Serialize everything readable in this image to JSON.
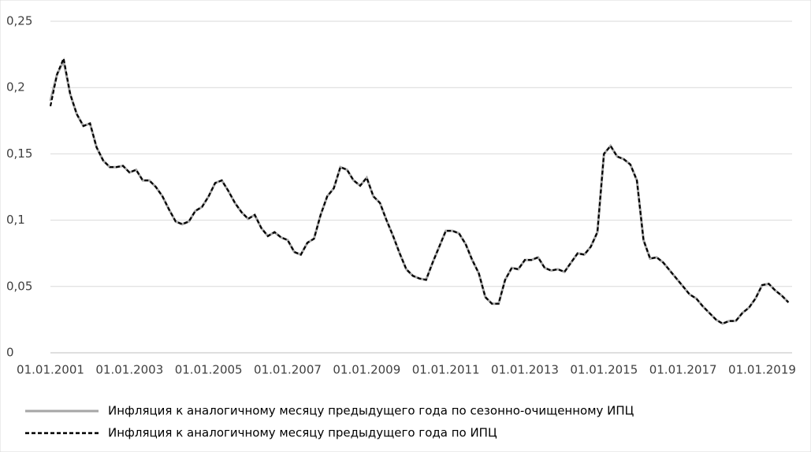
{
  "chart_data": {
    "type": "line",
    "x": [
      "01.01.2001",
      "01.03.2001",
      "01.05.2001",
      "01.07.2001",
      "01.09.2001",
      "01.11.2001",
      "01.01.2002",
      "01.03.2002",
      "01.05.2002",
      "01.07.2002",
      "01.09.2002",
      "01.11.2002",
      "01.01.2003",
      "01.03.2003",
      "01.05.2003",
      "01.07.2003",
      "01.09.2003",
      "01.11.2003",
      "01.01.2004",
      "01.03.2004",
      "01.05.2004",
      "01.07.2004",
      "01.09.2004",
      "01.11.2004",
      "01.01.2005",
      "01.03.2005",
      "01.05.2005",
      "01.07.2005",
      "01.09.2005",
      "01.11.2005",
      "01.01.2006",
      "01.03.2006",
      "01.05.2006",
      "01.07.2006",
      "01.09.2006",
      "01.11.2006",
      "01.01.2007",
      "01.03.2007",
      "01.05.2007",
      "01.07.2007",
      "01.09.2007",
      "01.11.2007",
      "01.01.2008",
      "01.03.2008",
      "01.05.2008",
      "01.07.2008",
      "01.09.2008",
      "01.11.2008",
      "01.01.2009",
      "01.03.2009",
      "01.05.2009",
      "01.07.2009",
      "01.09.2009",
      "01.11.2009",
      "01.01.2010",
      "01.03.2010",
      "01.05.2010",
      "01.07.2010",
      "01.09.2010",
      "01.11.2010",
      "01.01.2011",
      "01.03.2011",
      "01.05.2011",
      "01.07.2011",
      "01.09.2011",
      "01.11.2011",
      "01.01.2012",
      "01.03.2012",
      "01.05.2012",
      "01.07.2012",
      "01.09.2012",
      "01.11.2012",
      "01.01.2013",
      "01.03.2013",
      "01.05.2013",
      "01.07.2013",
      "01.09.2013",
      "01.11.2013",
      "01.01.2014",
      "01.03.2014",
      "01.05.2014",
      "01.07.2014",
      "01.09.2014",
      "01.11.2014",
      "01.01.2015",
      "01.03.2015",
      "01.05.2015",
      "01.07.2015",
      "01.09.2015",
      "01.11.2015",
      "01.01.2016",
      "01.03.2016",
      "01.05.2016",
      "01.07.2016",
      "01.09.2016",
      "01.11.2016",
      "01.01.2017",
      "01.03.2017",
      "01.05.2017",
      "01.07.2017",
      "01.09.2017",
      "01.11.2017",
      "01.01.2018",
      "01.03.2018",
      "01.05.2018",
      "01.07.2018",
      "01.09.2018",
      "01.11.2018",
      "01.01.2019",
      "01.03.2019",
      "01.05.2019",
      "01.07.2019",
      "01.09.2019"
    ],
    "series": [
      {
        "name": "Инфляция к аналогичному месяцу предыдущего года по сезонно-очищенному ИПЦ",
        "color": "#a6a6a6",
        "dash": false,
        "values": [
          0.19,
          0.21,
          0.22,
          0.195,
          0.18,
          0.171,
          0.173,
          0.155,
          0.145,
          0.14,
          0.14,
          0.141,
          0.136,
          0.138,
          0.13,
          0.13,
          0.125,
          0.118,
          0.108,
          0.099,
          0.097,
          0.099,
          0.107,
          0.11,
          0.118,
          0.128,
          0.13,
          0.122,
          0.113,
          0.106,
          0.101,
          0.104,
          0.094,
          0.088,
          0.091,
          0.087,
          0.085,
          0.076,
          0.074,
          0.083,
          0.086,
          0.104,
          0.118,
          0.124,
          0.14,
          0.138,
          0.13,
          0.126,
          0.132,
          0.118,
          0.113,
          0.1,
          0.088,
          0.075,
          0.063,
          0.058,
          0.056,
          0.055,
          0.068,
          0.08,
          0.092,
          0.092,
          0.09,
          0.082,
          0.07,
          0.06,
          0.042,
          0.037,
          0.037,
          0.055,
          0.064,
          0.063,
          0.07,
          0.07,
          0.072,
          0.064,
          0.062,
          0.063,
          0.061,
          0.068,
          0.075,
          0.074,
          0.08,
          0.091,
          0.15,
          0.156,
          0.148,
          0.146,
          0.142,
          0.13,
          0.085,
          0.071,
          0.072,
          0.068,
          0.062,
          0.056,
          0.05,
          0.044,
          0.041,
          0.035,
          0.03,
          0.025,
          0.022,
          0.024,
          0.024,
          0.03,
          0.034,
          0.041,
          0.051,
          0.052,
          0.047,
          0.043,
          0.038
        ]
      },
      {
        "name": "Инфляция к аналогичному месяцу предыдущего года по ИПЦ",
        "color": "#000000",
        "dash": true,
        "values": [
          0.186,
          0.21,
          0.222,
          0.195,
          0.18,
          0.171,
          0.173,
          0.155,
          0.145,
          0.14,
          0.14,
          0.141,
          0.136,
          0.138,
          0.13,
          0.13,
          0.125,
          0.118,
          0.108,
          0.099,
          0.097,
          0.099,
          0.107,
          0.11,
          0.118,
          0.128,
          0.13,
          0.122,
          0.113,
          0.106,
          0.101,
          0.104,
          0.094,
          0.088,
          0.091,
          0.087,
          0.085,
          0.076,
          0.074,
          0.083,
          0.086,
          0.104,
          0.118,
          0.124,
          0.14,
          0.138,
          0.13,
          0.126,
          0.132,
          0.118,
          0.113,
          0.1,
          0.088,
          0.075,
          0.063,
          0.058,
          0.056,
          0.055,
          0.068,
          0.08,
          0.092,
          0.092,
          0.09,
          0.082,
          0.07,
          0.06,
          0.042,
          0.037,
          0.037,
          0.055,
          0.064,
          0.063,
          0.07,
          0.07,
          0.072,
          0.064,
          0.062,
          0.063,
          0.061,
          0.068,
          0.075,
          0.074,
          0.08,
          0.091,
          0.15,
          0.156,
          0.148,
          0.146,
          0.142,
          0.13,
          0.085,
          0.071,
          0.072,
          0.068,
          0.062,
          0.056,
          0.05,
          0.044,
          0.041,
          0.035,
          0.03,
          0.025,
          0.022,
          0.024,
          0.024,
          0.03,
          0.034,
          0.041,
          0.051,
          0.052,
          0.047,
          0.043,
          0.038
        ]
      }
    ],
    "xticks": [
      "01.01.2001",
      "01.01.2003",
      "01.01.2005",
      "01.01.2007",
      "01.01.2009",
      "01.01.2011",
      "01.01.2013",
      "01.01.2015",
      "01.01.2017",
      "01.01.2019"
    ],
    "ylim": [
      0,
      0.25
    ],
    "yticks": [
      0,
      {
        "value": 0.05,
        "label": "0,05"
      },
      {
        "value": 0.1,
        "label": "0,1"
      },
      {
        "value": 0.15,
        "label": "0,15"
      },
      {
        "value": 0.2,
        "label": "0,2"
      },
      {
        "value": 0.25,
        "label": "0,25"
      }
    ],
    "grid": true
  }
}
